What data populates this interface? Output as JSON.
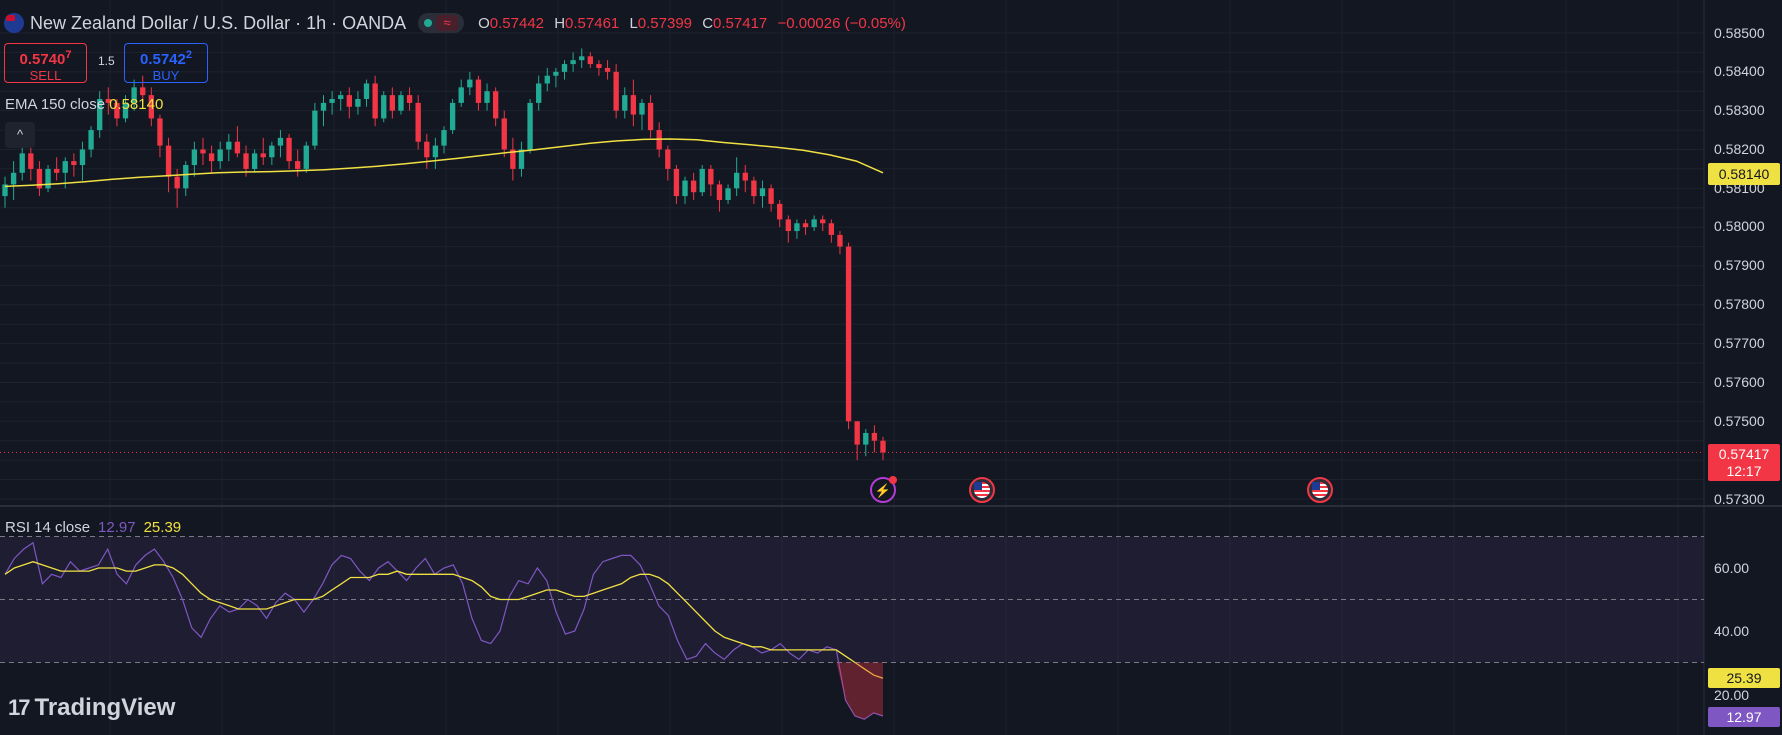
{
  "header": {
    "symbol_title": "New Zealand Dollar / U.S. Dollar · 1h · OANDA",
    "ohlc": {
      "o_label": "O",
      "o_value": "0.57442",
      "h_label": "H",
      "h_value": "0.57461",
      "l_label": "L",
      "l_value": "0.57399",
      "c_label": "C",
      "c_value": "0.57417",
      "change": "−0.00026 (−0.05%)"
    },
    "market_status_icon": "green-dot-icon",
    "wave_icon": "≈"
  },
  "trade": {
    "sell_price_main": "0.5740",
    "sell_price_sup": "7",
    "sell_label": "SELL",
    "spread": "1.5",
    "buy_price_main": "0.5742",
    "buy_price_sup": "2",
    "buy_label": "BUY"
  },
  "ema_legend": {
    "label": "EMA 150 close",
    "value": "0.58140"
  },
  "collapse_icon": "^",
  "rsi_legend": {
    "label": "RSI 14 close",
    "rsi_value": "12.97",
    "ma_value": "25.39"
  },
  "price_axis": {
    "ticks": [
      "0.58500",
      "0.58400",
      "0.58300",
      "0.58200",
      "0.58100",
      "0.58000",
      "0.57900",
      "0.57800",
      "0.57700",
      "0.57600",
      "0.57500",
      "0.57300"
    ],
    "ema_tag": "0.58140",
    "last_price": "0.57417",
    "countdown": "12:17"
  },
  "rsi_axis": {
    "ticks": [
      "60.00",
      "40.00",
      "20.00"
    ],
    "ma_tag": "25.39",
    "rsi_tag": "12.97"
  },
  "events": {
    "lightning_icon": "⚡"
  },
  "logo": {
    "mark": "17",
    "text": "TradingView"
  },
  "colors": {
    "background": "#131722",
    "up": "#22ab94",
    "down": "#f23645",
    "ema": "#f0e142",
    "rsi": "#7e57c2"
  },
  "chart_data": [
    {
      "type": "candlestick",
      "title": "New Zealand Dollar / U.S. Dollar · 1h · OANDA",
      "ylim": [
        0.5725,
        0.5855
      ],
      "candles": [
        [
          0.5808,
          0.5813,
          0.5805,
          0.5811
        ],
        [
          0.5811,
          0.5817,
          0.5807,
          0.5814
        ],
        [
          0.5814,
          0.5822,
          0.5812,
          0.5819
        ],
        [
          0.5819,
          0.5823,
          0.5812,
          0.5815
        ],
        [
          0.5815,
          0.5817,
          0.5808,
          0.581
        ],
        [
          0.581,
          0.5816,
          0.5809,
          0.5815
        ],
        [
          0.5815,
          0.5818,
          0.5812,
          0.5814
        ],
        [
          0.5814,
          0.5818,
          0.581,
          0.5817
        ],
        [
          0.5817,
          0.5819,
          0.5813,
          0.5816
        ],
        [
          0.5816,
          0.5822,
          0.5812,
          0.582
        ],
        [
          0.582,
          0.5826,
          0.5818,
          0.5825
        ],
        [
          0.5825,
          0.5835,
          0.5823,
          0.5833
        ],
        [
          0.5833,
          0.5836,
          0.5829,
          0.5832
        ],
        [
          0.5832,
          0.5833,
          0.5826,
          0.5828
        ],
        [
          0.5828,
          0.5834,
          0.5827,
          0.5832
        ],
        [
          0.5832,
          0.5838,
          0.583,
          0.5836
        ],
        [
          0.5836,
          0.5839,
          0.5832,
          0.5834
        ],
        [
          0.5834,
          0.5836,
          0.5826,
          0.5828
        ],
        [
          0.5828,
          0.5829,
          0.5818,
          0.5821
        ],
        [
          0.5821,
          0.5823,
          0.5809,
          0.5813
        ],
        [
          0.5813,
          0.5815,
          0.5805,
          0.581
        ],
        [
          0.581,
          0.5817,
          0.5808,
          0.5816
        ],
        [
          0.5816,
          0.5822,
          0.5813,
          0.582
        ],
        [
          0.582,
          0.5823,
          0.5816,
          0.5819
        ],
        [
          0.5819,
          0.5821,
          0.5814,
          0.5817
        ],
        [
          0.5817,
          0.5822,
          0.5815,
          0.582
        ],
        [
          0.582,
          0.5824,
          0.5817,
          0.5822
        ],
        [
          0.5822,
          0.5826,
          0.5818,
          0.5819
        ],
        [
          0.5819,
          0.5821,
          0.5813,
          0.5815
        ],
        [
          0.5815,
          0.582,
          0.5814,
          0.5819
        ],
        [
          0.5819,
          0.5823,
          0.5816,
          0.5818
        ],
        [
          0.5818,
          0.5822,
          0.5816,
          0.5821
        ],
        [
          0.5821,
          0.5825,
          0.5818,
          0.5823
        ],
        [
          0.5823,
          0.5824,
          0.5815,
          0.5817
        ],
        [
          0.5817,
          0.582,
          0.5813,
          0.5815
        ],
        [
          0.5815,
          0.5822,
          0.5814,
          0.5821
        ],
        [
          0.5821,
          0.5832,
          0.582,
          0.583
        ],
        [
          0.583,
          0.5834,
          0.5826,
          0.5832
        ],
        [
          0.5832,
          0.5835,
          0.5829,
          0.5833
        ],
        [
          0.5833,
          0.5835,
          0.583,
          0.5834
        ],
        [
          0.5834,
          0.5836,
          0.5828,
          0.5831
        ],
        [
          0.5831,
          0.5835,
          0.5829,
          0.5833
        ],
        [
          0.5833,
          0.5838,
          0.5831,
          0.5837
        ],
        [
          0.5837,
          0.5839,
          0.5826,
          0.5828
        ],
        [
          0.5828,
          0.5835,
          0.5827,
          0.5834
        ],
        [
          0.5834,
          0.5836,
          0.5828,
          0.583
        ],
        [
          0.583,
          0.5835,
          0.5829,
          0.5834
        ],
        [
          0.5834,
          0.5836,
          0.583,
          0.5832
        ],
        [
          0.5832,
          0.5834,
          0.582,
          0.5822
        ],
        [
          0.5822,
          0.5824,
          0.5815,
          0.5818
        ],
        [
          0.5818,
          0.5823,
          0.5815,
          0.5821
        ],
        [
          0.5821,
          0.5826,
          0.5819,
          0.5825
        ],
        [
          0.5825,
          0.5833,
          0.5824,
          0.5832
        ],
        [
          0.5832,
          0.5838,
          0.5831,
          0.5836
        ],
        [
          0.5836,
          0.584,
          0.5834,
          0.5838
        ],
        [
          0.5838,
          0.5839,
          0.583,
          0.5832
        ],
        [
          0.5832,
          0.5837,
          0.583,
          0.5835
        ],
        [
          0.5835,
          0.5836,
          0.5826,
          0.5828
        ],
        [
          0.5828,
          0.583,
          0.5818,
          0.582
        ],
        [
          0.582,
          0.5823,
          0.5812,
          0.5815
        ],
        [
          0.5815,
          0.5822,
          0.5813,
          0.582
        ],
        [
          0.582,
          0.5833,
          0.5819,
          0.5832
        ],
        [
          0.5832,
          0.5839,
          0.583,
          0.5837
        ],
        [
          0.5837,
          0.5841,
          0.5835,
          0.5839
        ],
        [
          0.5839,
          0.5841,
          0.5836,
          0.584
        ],
        [
          0.584,
          0.5843,
          0.5838,
          0.5842
        ],
        [
          0.5842,
          0.5845,
          0.584,
          0.5843
        ],
        [
          0.5843,
          0.5846,
          0.5841,
          0.5844
        ],
        [
          0.5844,
          0.5845,
          0.5841,
          0.5842
        ],
        [
          0.5842,
          0.5843,
          0.5839,
          0.5841
        ],
        [
          0.5841,
          0.5843,
          0.5838,
          0.584
        ],
        [
          0.584,
          0.5842,
          0.5828,
          0.583
        ],
        [
          0.583,
          0.5836,
          0.5828,
          0.5834
        ],
        [
          0.5834,
          0.5838,
          0.5826,
          0.5829
        ],
        [
          0.5829,
          0.5833,
          0.5825,
          0.5832
        ],
        [
          0.5832,
          0.5834,
          0.5823,
          0.5825
        ],
        [
          0.5825,
          0.5827,
          0.5818,
          0.582
        ],
        [
          0.582,
          0.5821,
          0.5812,
          0.5815
        ],
        [
          0.5815,
          0.5816,
          0.5806,
          0.5808
        ],
        [
          0.5808,
          0.5813,
          0.5806,
          0.5812
        ],
        [
          0.5812,
          0.5814,
          0.5807,
          0.5809
        ],
        [
          0.5809,
          0.5816,
          0.5808,
          0.5815
        ],
        [
          0.5815,
          0.5816,
          0.5808,
          0.5811
        ],
        [
          0.5811,
          0.5812,
          0.5804,
          0.5807
        ],
        [
          0.5807,
          0.5811,
          0.5806,
          0.581
        ],
        [
          0.581,
          0.5818,
          0.5808,
          0.5814
        ],
        [
          0.5814,
          0.5816,
          0.5809,
          0.5812
        ],
        [
          0.5812,
          0.5813,
          0.5806,
          0.5808
        ],
        [
          0.5808,
          0.5812,
          0.5805,
          0.581
        ],
        [
          0.581,
          0.5811,
          0.5804,
          0.5806
        ],
        [
          0.5806,
          0.5807,
          0.58,
          0.5802
        ],
        [
          0.5802,
          0.5803,
          0.5796,
          0.5799
        ],
        [
          0.5799,
          0.5802,
          0.5797,
          0.5801
        ],
        [
          0.5801,
          0.5802,
          0.5798,
          0.58
        ],
        [
          0.58,
          0.5803,
          0.5799,
          0.5802
        ],
        [
          0.5802,
          0.5803,
          0.5799,
          0.5801
        ],
        [
          0.5801,
          0.5802,
          0.5796,
          0.5798
        ],
        [
          0.5798,
          0.5799,
          0.5793,
          0.5795
        ],
        [
          0.5795,
          0.5796,
          0.5748,
          0.575
        ],
        [
          0.575,
          0.575,
          0.574,
          0.5744
        ],
        [
          0.5744,
          0.5748,
          0.5741,
          0.5747
        ],
        [
          0.5747,
          0.5749,
          0.5742,
          0.5745
        ],
        [
          0.5745,
          0.5746,
          0.574,
          0.5742
        ]
      ],
      "ema": [
        0.58105,
        0.58108,
        0.58112,
        0.58117,
        0.58123,
        0.58128,
        0.58132,
        0.58136,
        0.5814,
        0.58142,
        0.58143,
        0.58145,
        0.58148,
        0.58152,
        0.58157,
        0.58163,
        0.5817,
        0.58177,
        0.58185,
        0.58193,
        0.582,
        0.58208,
        0.58216,
        0.58222,
        0.58226,
        0.58227,
        0.58225,
        0.58218,
        0.58212,
        0.58206,
        0.58198,
        0.58186,
        0.5817,
        0.5814
      ]
    },
    {
      "type": "line",
      "title": "RSI 14 close",
      "ylim": [
        7,
        71
      ],
      "bands": {
        "upper": 70,
        "middle": 50,
        "lower": 30
      },
      "series": [
        {
          "name": "RSI",
          "values": [
            58,
            63,
            66,
            68,
            55,
            58,
            57,
            62,
            59,
            60,
            61,
            66,
            58,
            55,
            61,
            64,
            66,
            62,
            57,
            50,
            41,
            38,
            44,
            48,
            46,
            47,
            50,
            48,
            44,
            49,
            52,
            50,
            46,
            50,
            55,
            61,
            64,
            63,
            59,
            56,
            60,
            62,
            59,
            56,
            60,
            63,
            58,
            60,
            61,
            55,
            44,
            37,
            36,
            40,
            51,
            56,
            55,
            60,
            56,
            46,
            39,
            40,
            47,
            58,
            62,
            63,
            64,
            64,
            61,
            55,
            48,
            45,
            37,
            31,
            32,
            36,
            33,
            31,
            34,
            36,
            35,
            33,
            34,
            36,
            33,
            31,
            34,
            33,
            35,
            34,
            18,
            13,
            12,
            14,
            13
          ]
        },
        {
          "name": "RSI MA",
          "values": [
            58,
            60,
            61,
            62,
            61,
            60,
            59,
            59,
            59,
            59,
            60,
            60,
            60,
            59,
            59,
            60,
            61,
            61,
            60,
            58,
            55,
            52,
            50,
            49,
            48,
            47,
            47,
            47,
            47,
            48,
            49,
            50,
            50,
            50,
            51,
            53,
            55,
            57,
            57,
            57,
            58,
            58,
            59,
            58,
            58,
            58,
            58,
            58,
            58,
            57,
            56,
            54,
            51,
            50,
            50,
            50,
            51,
            52,
            53,
            53,
            52,
            51,
            51,
            52,
            53,
            54,
            55,
            57,
            58,
            58,
            57,
            55,
            52,
            49,
            46,
            43,
            40,
            38,
            37,
            36,
            35,
            35,
            34,
            34,
            34,
            34,
            34,
            34,
            34,
            34,
            32,
            30,
            28,
            26,
            25
          ]
        }
      ]
    }
  ]
}
